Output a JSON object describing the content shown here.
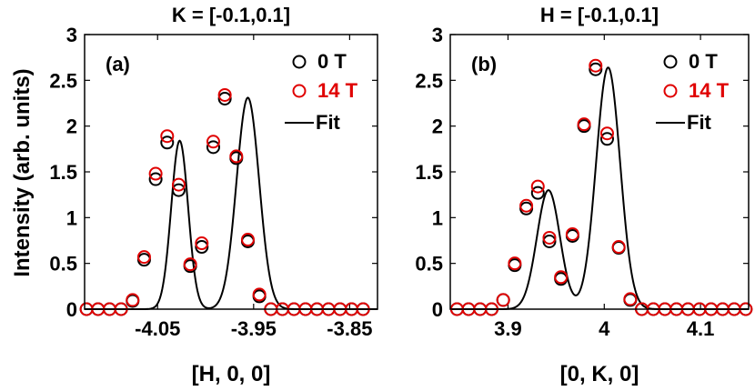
{
  "shared": {
    "ylabel": "Intensity (arb. units)",
    "ylim": [
      0,
      3
    ],
    "yticks": [
      "0",
      "0.5",
      "1",
      "1.5",
      "2",
      "2.5",
      "3"
    ],
    "ytick_values": [
      0,
      0.5,
      1,
      1.5,
      2,
      2.5,
      3
    ]
  },
  "legend_labels": [
    "0 T",
    "14 T",
    "Fit"
  ],
  "colors": {
    "zero_field": "#000000",
    "high_field": "#e00000",
    "fit": "#000000",
    "axes": "#000000"
  },
  "chart_data": [
    {
      "type": "scatter",
      "panel": "(a)",
      "title": "K = [-0.1,0.1]",
      "xlabel": "[H, 0, 0]",
      "ylabel": "Intensity (arb. units)",
      "xlim": [
        -4.126,
        -3.821
      ],
      "ylim": [
        0,
        3
      ],
      "xticks": [
        "-4.05",
        "-3.95",
        "-3.85"
      ],
      "xtick_values": [
        -4.05,
        -3.95,
        -3.85
      ],
      "legend_position": "top-right",
      "series": [
        {
          "name": "0 T",
          "marker": "open-circle",
          "color": "#000000",
          "x": [
            -4.124,
            -4.112,
            -4.1,
            -4.088,
            -4.076,
            -4.064,
            -4.052,
            -4.04,
            -4.028,
            -4.016,
            -4.004,
            -3.992,
            -3.98,
            -3.968,
            -3.956,
            -3.944,
            -3.932,
            -3.92,
            -3.908,
            -3.896,
            -3.884,
            -3.872,
            -3.86,
            -3.848,
            -3.836
          ],
          "y": [
            0,
            0,
            0,
            0,
            0.09,
            0.54,
            1.42,
            1.82,
            1.3,
            0.47,
            0.68,
            1.77,
            2.3,
            1.65,
            0.74,
            0.14,
            0,
            0,
            0,
            0,
            0,
            0,
            0,
            0,
            0
          ]
        },
        {
          "name": "14 T",
          "marker": "open-circle",
          "color": "#e00000",
          "x": [
            -4.124,
            -4.112,
            -4.1,
            -4.088,
            -4.076,
            -4.064,
            -4.052,
            -4.04,
            -4.028,
            -4.016,
            -4.004,
            -3.992,
            -3.98,
            -3.968,
            -3.956,
            -3.944,
            -3.932,
            -3.92,
            -3.908,
            -3.896,
            -3.884,
            -3.872,
            -3.86,
            -3.848,
            -3.836
          ],
          "y": [
            0,
            0,
            0,
            0,
            0.1,
            0.57,
            1.48,
            1.89,
            1.36,
            0.49,
            0.72,
            1.83,
            2.34,
            1.67,
            0.76,
            0.16,
            0,
            0,
            0,
            0,
            0,
            0,
            0,
            0,
            0
          ]
        },
        {
          "name": "Fit",
          "style": "line",
          "color": "#000000",
          "components": [
            {
              "center": -4.027,
              "amplitude": 1.84,
              "sigma": 0.0088
            },
            {
              "center": -3.956,
              "amplitude": 2.31,
              "sigma": 0.0118
            }
          ]
        }
      ]
    },
    {
      "type": "scatter",
      "panel": "(b)",
      "title": "H = [-0.1,0.1]",
      "xlabel": "[0, K, 0]",
      "ylabel": "Intensity (arb. units)",
      "xlim": [
        3.84,
        4.15
      ],
      "ylim": [
        0,
        3
      ],
      "xticks": [
        "3.9",
        "4",
        "4.1"
      ],
      "xtick_values": [
        3.9,
        4.0,
        4.1
      ],
      "legend_position": "top-right",
      "series": [
        {
          "name": "0 T",
          "marker": "open-circle",
          "color": "#000000",
          "x": [
            3.847,
            3.859,
            3.871,
            3.883,
            3.895,
            3.907,
            3.919,
            3.931,
            3.943,
            3.955,
            3.967,
            3.979,
            3.991,
            4.003,
            4.015,
            4.027,
            4.039,
            4.051,
            4.063,
            4.075,
            4.087,
            4.099,
            4.111,
            4.123,
            4.135,
            4.147
          ],
          "y": [
            0,
            0,
            0,
            0,
            0.1,
            0.48,
            1.1,
            1.27,
            0.74,
            0.33,
            0.8,
            2.0,
            2.62,
            1.86,
            0.67,
            0.1,
            0,
            0,
            0,
            0,
            0,
            0,
            0,
            0,
            0,
            0
          ]
        },
        {
          "name": "14 T",
          "marker": "open-circle",
          "color": "#e00000",
          "x": [
            3.847,
            3.859,
            3.871,
            3.883,
            3.895,
            3.907,
            3.919,
            3.931,
            3.943,
            3.955,
            3.967,
            3.979,
            3.991,
            4.003,
            4.015,
            4.027,
            4.039,
            4.051,
            4.063,
            4.075,
            4.087,
            4.099,
            4.111,
            4.123,
            4.135,
            4.147
          ],
          "y": [
            0,
            0,
            0,
            0,
            0.1,
            0.5,
            1.13,
            1.34,
            0.78,
            0.35,
            0.82,
            2.02,
            2.66,
            1.92,
            0.68,
            0.11,
            0,
            0,
            0,
            0,
            0,
            0,
            0,
            0,
            0,
            0
          ]
        },
        {
          "name": "Fit",
          "style": "line",
          "color": "#000000",
          "components": [
            {
              "center": 3.942,
              "amplitude": 1.3,
              "sigma": 0.012
            },
            {
              "center": 4.004,
              "amplitude": 2.64,
              "sigma": 0.0125
            }
          ]
        }
      ]
    }
  ]
}
